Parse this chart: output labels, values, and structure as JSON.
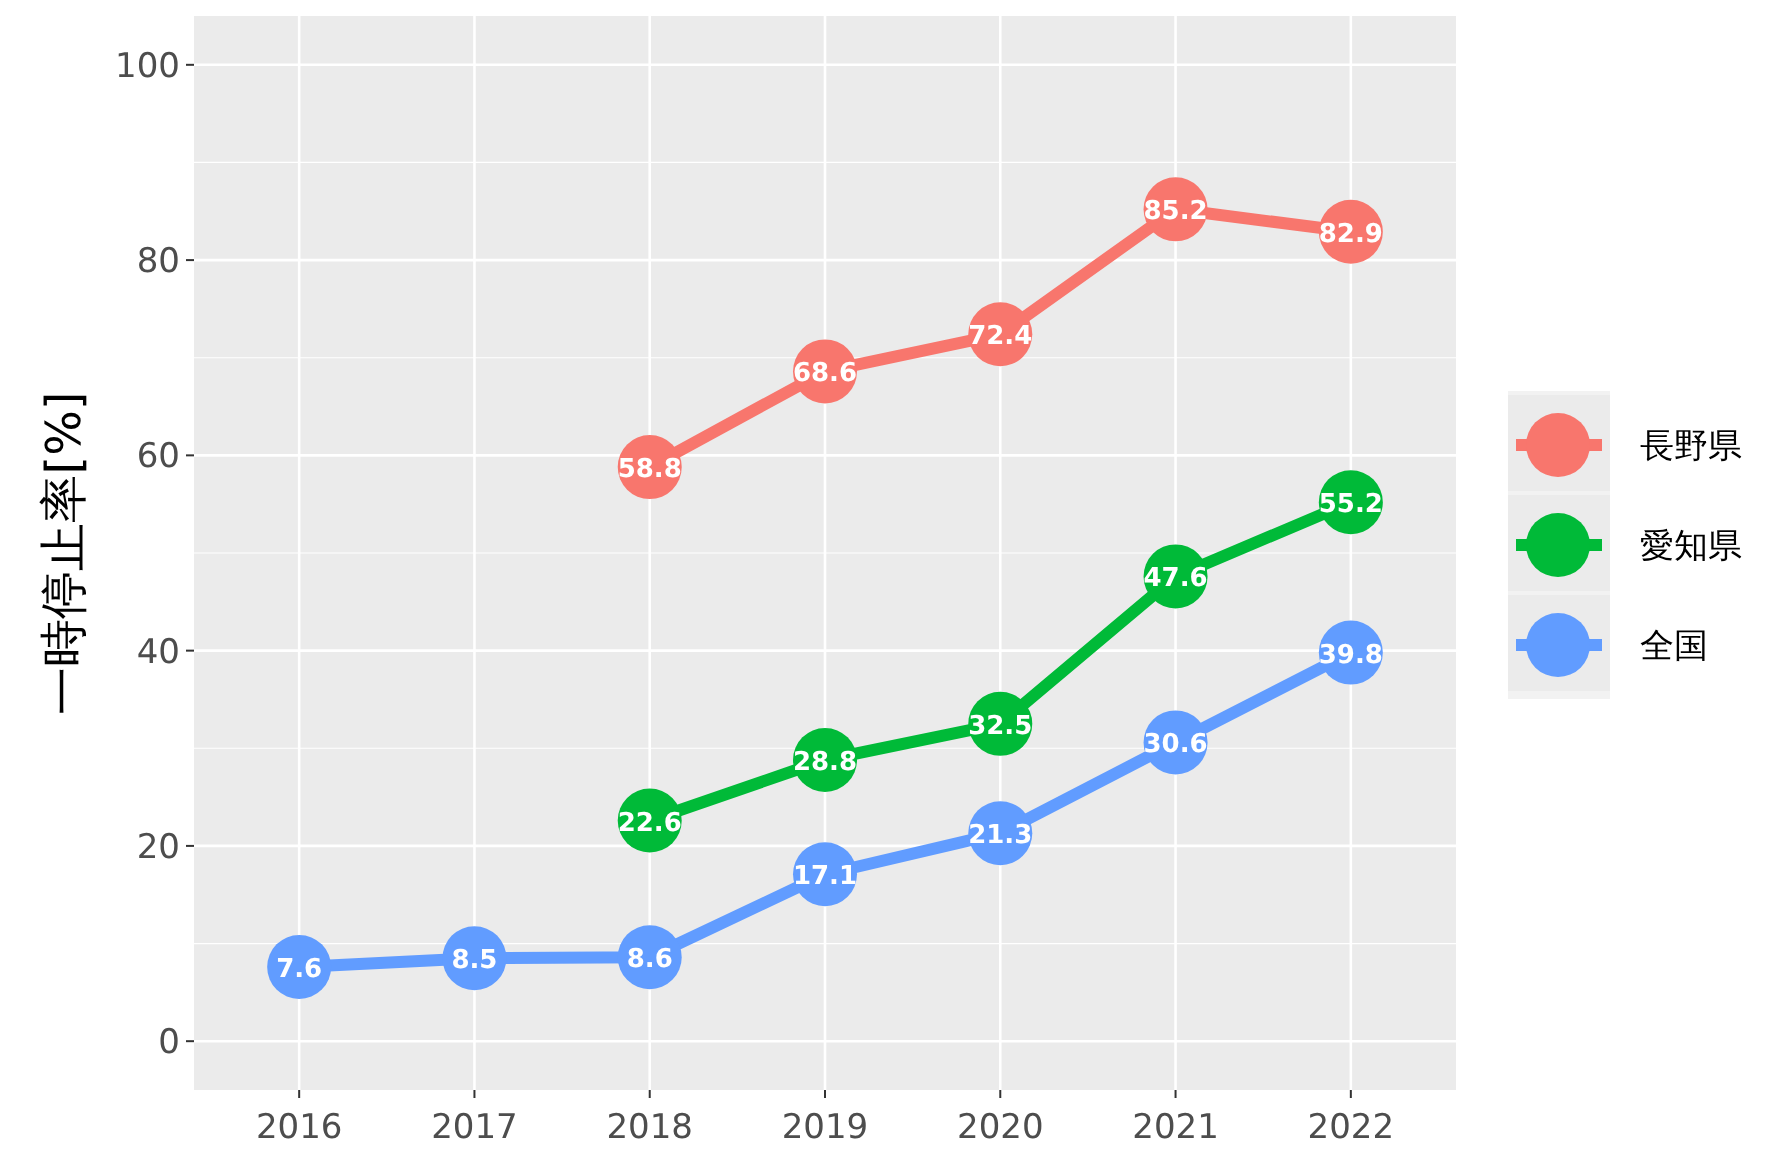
{
  "chart_data": {
    "type": "line",
    "ylabel": "一時停止率[%]",
    "xlim": [
      2015.4,
      2022.6
    ],
    "ylim": [
      -5,
      105
    ],
    "xticks": [
      2016,
      2017,
      2018,
      2019,
      2020,
      2021,
      2022
    ],
    "yticks": [
      0,
      20,
      40,
      60,
      80,
      100
    ],
    "grid": true,
    "legend": "right",
    "marker": "circle",
    "data_labels": true,
    "series": [
      {
        "name": "長野県",
        "color": "#f8766d",
        "x": [
          2018,
          2019,
          2020,
          2021,
          2022
        ],
        "values": [
          58.8,
          68.6,
          72.4,
          85.2,
          82.9
        ]
      },
      {
        "name": "愛知県",
        "color": "#00ba38",
        "x": [
          2018,
          2019,
          2020,
          2021,
          2022
        ],
        "values": [
          22.6,
          28.8,
          32.5,
          47.6,
          55.2
        ]
      },
      {
        "name": "全国",
        "color": "#619cff",
        "x": [
          2016,
          2017,
          2018,
          2019,
          2020,
          2021,
          2022
        ],
        "values": [
          7.6,
          8.5,
          8.6,
          17.1,
          21.3,
          30.6,
          39.8
        ]
      }
    ]
  }
}
